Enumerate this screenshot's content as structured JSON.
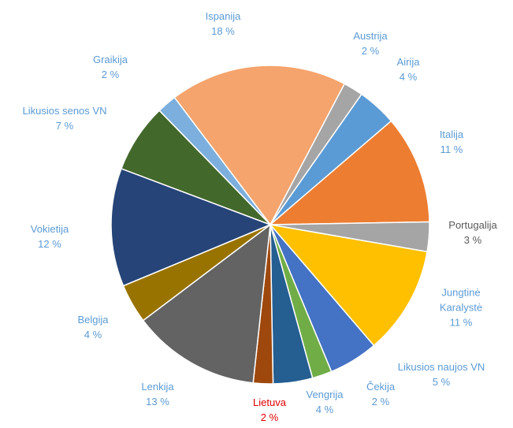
{
  "chart_data": {
    "type": "pie",
    "categories": [
      "Ispanija",
      "Austrija",
      "Airija",
      "Italija",
      "Portugalija",
      "Jungtinė Karalystė",
      "Likusios naujos VN",
      "Čekija",
      "Vengrija",
      "Lietuva",
      "Lenkija",
      "Belgija",
      "Vokietija",
      "Likusios senos VN",
      "Graikija"
    ],
    "values": [
      18,
      2,
      4,
      11,
      3,
      11,
      5,
      2,
      4,
      2,
      13,
      4,
      12,
      7,
      2
    ],
    "value_labels": [
      "18 %",
      "2 %",
      "4 %",
      "11 %",
      "3 %",
      "11 %",
      "5 %",
      "2 %",
      "4 %",
      "2 %",
      "13 %",
      "4 %",
      "12 %",
      "7 %",
      "2 %"
    ],
    "colors": [
      "#f4a46c",
      "#a5a5a5",
      "#5b9bd5",
      "#ed7d31",
      "#a5a5a5",
      "#ffc000",
      "#4472c4",
      "#70ad47",
      "#255e91",
      "#9e480e",
      "#636363",
      "#997300",
      "#264478",
      "#43682b",
      "#7cafdd"
    ],
    "label_colors": [
      "#5b9bd5",
      "#5b9bd5",
      "#5b9bd5",
      "#5b9bd5",
      "#595959",
      "#5b9bd5",
      "#5b9bd5",
      "#5b9bd5",
      "#5b9bd5",
      "#e00000",
      "#5b9bd5",
      "#5b9bd5",
      "#5b9bd5",
      "#5b9bd5",
      "#5b9bd5"
    ]
  }
}
